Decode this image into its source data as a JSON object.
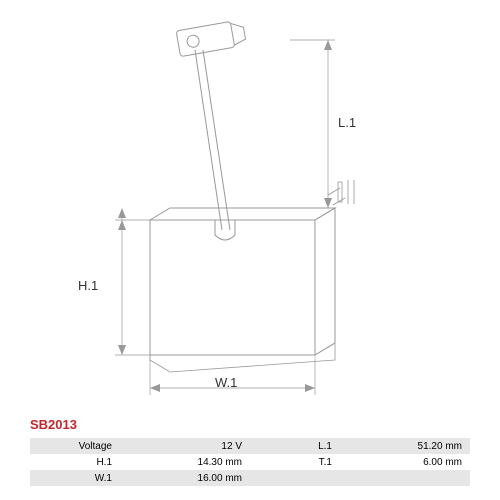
{
  "part_number": "SB2013",
  "part_number_color": "#c1272d",
  "diagram": {
    "stroke_color": "#999999",
    "stroke_width": 1,
    "dimension_labels": {
      "H": "H.1",
      "W": "W.1",
      "L": "L.1"
    }
  },
  "specs": {
    "rows": [
      {
        "shaded": true,
        "label1": "Voltage",
        "value1": "12 V",
        "label2": "L.1",
        "value2": "51.20 mm"
      },
      {
        "shaded": false,
        "label1": "H.1",
        "value1": "14.30 mm",
        "label2": "T.1",
        "value2": "6.00 mm"
      },
      {
        "shaded": true,
        "label1": "W.1",
        "value1": "16.00 mm",
        "label2": "",
        "value2": ""
      }
    ],
    "font_size": 10,
    "shaded_bg": "#e6e6e6",
    "plain_bg": "#ffffff"
  }
}
